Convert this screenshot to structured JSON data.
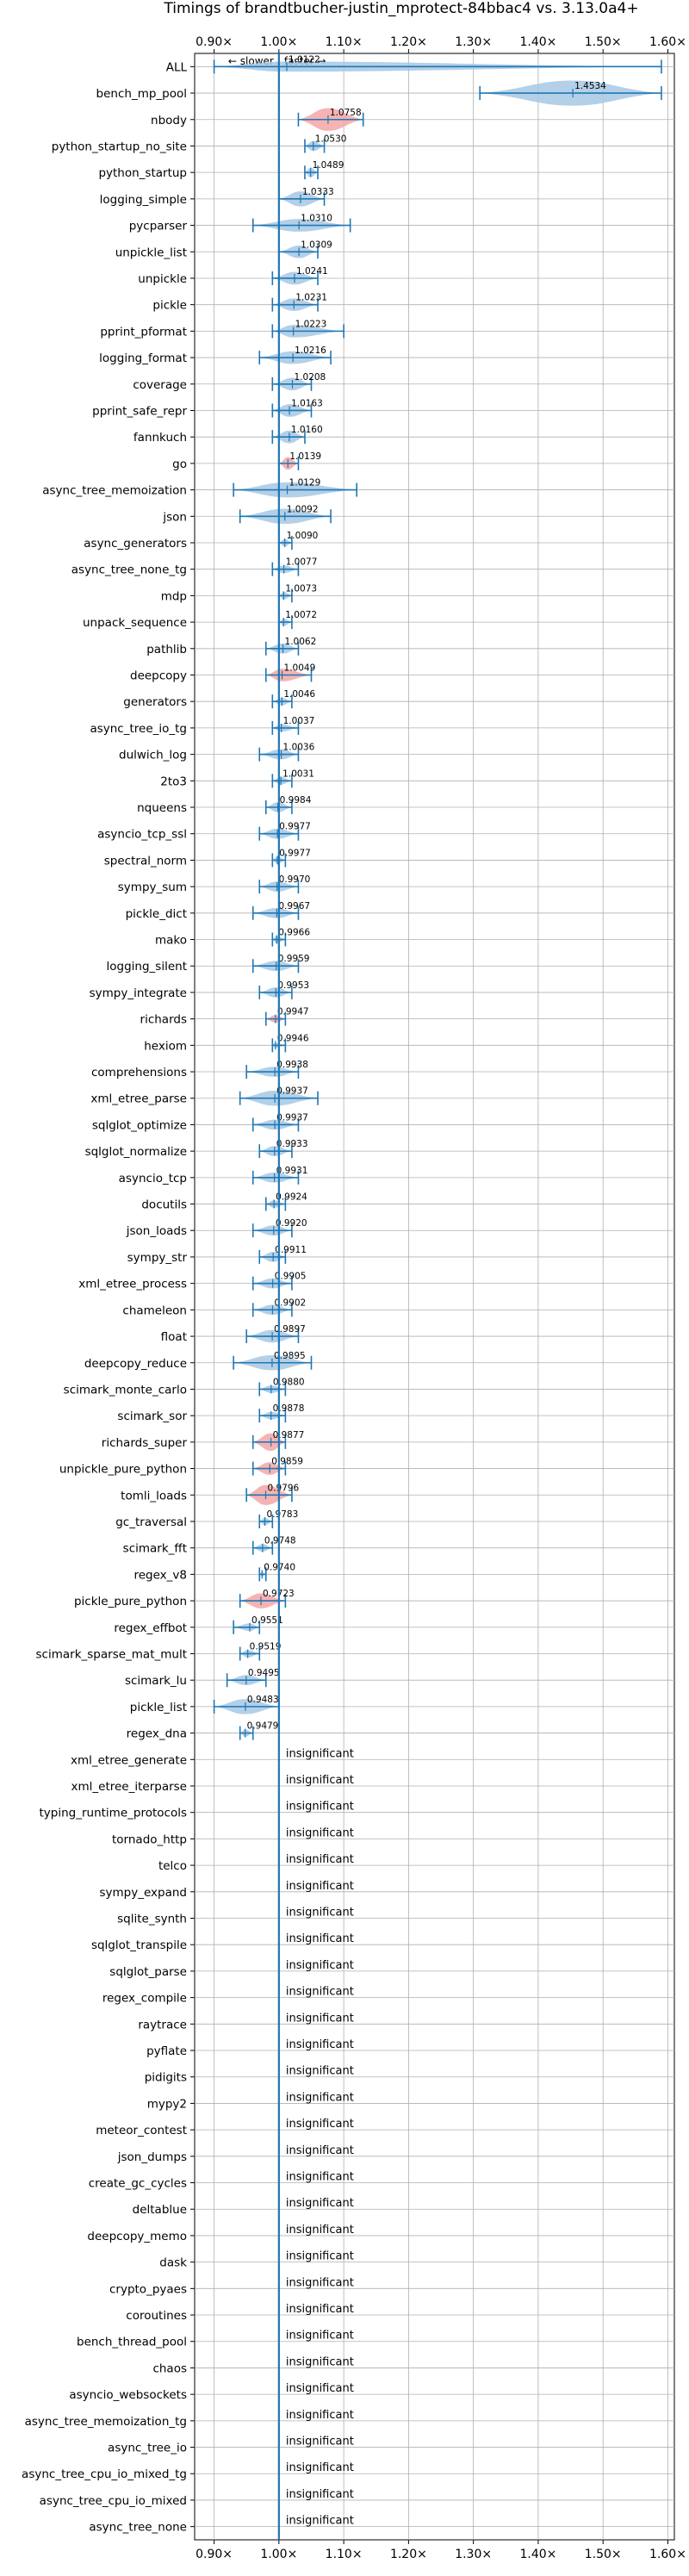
{
  "chart_data": {
    "type": "violin",
    "title": "Timings of brandtbucher-justin_mprotect-84bbac4 vs. 3.13.0a4+",
    "direction_labels": {
      "slower": "slower",
      "faster": "faster"
    },
    "xlim": [
      0.87,
      1.61
    ],
    "xticks": [
      0.9,
      1.0,
      1.1,
      1.2,
      1.3,
      1.4,
      1.5,
      1.6
    ],
    "xtick_labels": [
      "0.90×",
      "1.00×",
      "1.10×",
      "1.20×",
      "1.30×",
      "1.40×",
      "1.50×",
      "1.60×"
    ],
    "reference_x": 1.0,
    "grid": true,
    "insignificant_text": "insignificant",
    "colors": {
      "normal": "#1f77b4",
      "normal_fill": "#a6c8e4",
      "highlight_fill": "#f4a6a6"
    },
    "rows": [
      {
        "name": "ALL",
        "value": 1.0122,
        "min": 0.9,
        "max": 1.59,
        "width": 0.4,
        "hl": false,
        "label": "1.0122"
      },
      {
        "name": "bench_mp_pool",
        "value": 1.4534,
        "min": 1.31,
        "max": 1.59,
        "width": 1.0,
        "hl": false,
        "label": "1.4534"
      },
      {
        "name": "nbody",
        "value": 1.0758,
        "min": 1.03,
        "max": 1.13,
        "width": 0.9,
        "hl": true,
        "label": "1.0758"
      },
      {
        "name": "python_startup_no_site",
        "value": 1.053,
        "min": 1.04,
        "max": 1.07,
        "width": 0.4,
        "hl": false,
        "label": "1.0530"
      },
      {
        "name": "python_startup",
        "value": 1.0489,
        "min": 1.04,
        "max": 1.06,
        "width": 0.4,
        "hl": false,
        "label": "1.0489"
      },
      {
        "name": "logging_simple",
        "value": 1.0333,
        "min": 1.0,
        "max": 1.07,
        "width": 0.6,
        "hl": false,
        "label": "1.0333"
      },
      {
        "name": "pycparser",
        "value": 1.031,
        "min": 0.96,
        "max": 1.11,
        "width": 0.5,
        "hl": false,
        "label": "1.0310"
      },
      {
        "name": "unpickle_list",
        "value": 1.0309,
        "min": 1.0,
        "max": 1.06,
        "width": 0.5,
        "hl": false,
        "label": "1.0309"
      },
      {
        "name": "unpickle",
        "value": 1.0241,
        "min": 0.99,
        "max": 1.06,
        "width": 0.5,
        "hl": false,
        "label": "1.0241"
      },
      {
        "name": "pickle",
        "value": 1.0231,
        "min": 0.99,
        "max": 1.06,
        "width": 0.5,
        "hl": false,
        "label": "1.0231"
      },
      {
        "name": "pprint_pformat",
        "value": 1.0223,
        "min": 0.99,
        "max": 1.1,
        "width": 0.5,
        "hl": false,
        "label": "1.0223"
      },
      {
        "name": "logging_format",
        "value": 1.0216,
        "min": 0.97,
        "max": 1.08,
        "width": 0.5,
        "hl": false,
        "label": "1.0216"
      },
      {
        "name": "coverage",
        "value": 1.0208,
        "min": 0.99,
        "max": 1.05,
        "width": 0.5,
        "hl": false,
        "label": "1.0208"
      },
      {
        "name": "pprint_safe_repr",
        "value": 1.0163,
        "min": 0.99,
        "max": 1.05,
        "width": 0.5,
        "hl": false,
        "label": "1.0163"
      },
      {
        "name": "fannkuch",
        "value": 1.016,
        "min": 0.99,
        "max": 1.04,
        "width": 0.5,
        "hl": false,
        "label": "1.0160"
      },
      {
        "name": "go",
        "value": 1.0139,
        "min": 1.0,
        "max": 1.03,
        "width": 0.5,
        "hl": true,
        "label": "1.0139"
      },
      {
        "name": "async_tree_memoization",
        "value": 1.0129,
        "min": 0.93,
        "max": 1.12,
        "width": 0.6,
        "hl": false,
        "label": "1.0129"
      },
      {
        "name": "json",
        "value": 1.0092,
        "min": 0.94,
        "max": 1.08,
        "width": 0.6,
        "hl": false,
        "label": "1.0092"
      },
      {
        "name": "async_generators",
        "value": 1.009,
        "min": 1.0,
        "max": 1.02,
        "width": 0.3,
        "hl": false,
        "label": "1.0090"
      },
      {
        "name": "async_tree_none_tg",
        "value": 1.0077,
        "min": 0.99,
        "max": 1.03,
        "width": 0.3,
        "hl": false,
        "label": "1.0077"
      },
      {
        "name": "mdp",
        "value": 1.0073,
        "min": 1.0,
        "max": 1.02,
        "width": 0.3,
        "hl": false,
        "label": "1.0073"
      },
      {
        "name": "unpack_sequence",
        "value": 1.0072,
        "min": 1.0,
        "max": 1.02,
        "width": 0.3,
        "hl": false,
        "label": "1.0072"
      },
      {
        "name": "pathlib",
        "value": 1.0062,
        "min": 0.98,
        "max": 1.03,
        "width": 0.4,
        "hl": false,
        "label": "1.0062"
      },
      {
        "name": "deepcopy",
        "value": 1.0049,
        "min": 0.98,
        "max": 1.05,
        "width": 0.5,
        "hl": true,
        "label": "1.0049"
      },
      {
        "name": "generators",
        "value": 1.0046,
        "min": 0.99,
        "max": 1.02,
        "width": 0.3,
        "hl": false,
        "label": "1.0046"
      },
      {
        "name": "async_tree_io_tg",
        "value": 1.0037,
        "min": 0.99,
        "max": 1.03,
        "width": 0.3,
        "hl": false,
        "label": "1.0037"
      },
      {
        "name": "dulwich_log",
        "value": 1.0036,
        "min": 0.97,
        "max": 1.03,
        "width": 0.4,
        "hl": false,
        "label": "1.0036"
      },
      {
        "name": "2to3",
        "value": 1.0031,
        "min": 0.99,
        "max": 1.02,
        "width": 0.3,
        "hl": false,
        "label": "1.0031"
      },
      {
        "name": "nqueens",
        "value": 0.9984,
        "min": 0.98,
        "max": 1.02,
        "width": 0.4,
        "hl": false,
        "label": "0.9984"
      },
      {
        "name": "asyncio_tcp_ssl",
        "value": 0.9977,
        "min": 0.97,
        "max": 1.03,
        "width": 0.4,
        "hl": false,
        "label": "0.9977"
      },
      {
        "name": "spectral_norm",
        "value": 0.9977,
        "min": 0.99,
        "max": 1.01,
        "width": 0.3,
        "hl": false,
        "label": "0.9977"
      },
      {
        "name": "sympy_sum",
        "value": 0.997,
        "min": 0.97,
        "max": 1.03,
        "width": 0.4,
        "hl": false,
        "label": "0.9970"
      },
      {
        "name": "pickle_dict",
        "value": 0.9967,
        "min": 0.96,
        "max": 1.03,
        "width": 0.4,
        "hl": false,
        "label": "0.9967"
      },
      {
        "name": "mako",
        "value": 0.9966,
        "min": 0.99,
        "max": 1.01,
        "width": 0.3,
        "hl": false,
        "label": "0.9966"
      },
      {
        "name": "logging_silent",
        "value": 0.9959,
        "min": 0.96,
        "max": 1.03,
        "width": 0.4,
        "hl": false,
        "label": "0.9959"
      },
      {
        "name": "sympy_integrate",
        "value": 0.9953,
        "min": 0.97,
        "max": 1.02,
        "width": 0.4,
        "hl": false,
        "label": "0.9953"
      },
      {
        "name": "richards",
        "value": 0.9947,
        "min": 0.98,
        "max": 1.01,
        "width": 0.3,
        "hl": true,
        "label": "0.9947"
      },
      {
        "name": "hexiom",
        "value": 0.9946,
        "min": 0.99,
        "max": 1.01,
        "width": 0.2,
        "hl": false,
        "label": "0.9946"
      },
      {
        "name": "comprehensions",
        "value": 0.9938,
        "min": 0.95,
        "max": 1.03,
        "width": 0.4,
        "hl": false,
        "label": "0.9938"
      },
      {
        "name": "xml_etree_parse",
        "value": 0.9937,
        "min": 0.94,
        "max": 1.06,
        "width": 0.6,
        "hl": false,
        "label": "0.9937"
      },
      {
        "name": "sqlglot_optimize",
        "value": 0.9937,
        "min": 0.96,
        "max": 1.03,
        "width": 0.4,
        "hl": false,
        "label": "0.9937"
      },
      {
        "name": "sqlglot_normalize",
        "value": 0.9933,
        "min": 0.97,
        "max": 1.02,
        "width": 0.4,
        "hl": false,
        "label": "0.9933"
      },
      {
        "name": "asyncio_tcp",
        "value": 0.9931,
        "min": 0.96,
        "max": 1.03,
        "width": 0.4,
        "hl": false,
        "label": "0.9931"
      },
      {
        "name": "docutils",
        "value": 0.9924,
        "min": 0.98,
        "max": 1.01,
        "width": 0.3,
        "hl": false,
        "label": "0.9924"
      },
      {
        "name": "json_loads",
        "value": 0.992,
        "min": 0.96,
        "max": 1.02,
        "width": 0.4,
        "hl": false,
        "label": "0.9920"
      },
      {
        "name": "sympy_str",
        "value": 0.9911,
        "min": 0.97,
        "max": 1.01,
        "width": 0.4,
        "hl": false,
        "label": "0.9911"
      },
      {
        "name": "xml_etree_process",
        "value": 0.9905,
        "min": 0.96,
        "max": 1.02,
        "width": 0.4,
        "hl": false,
        "label": "0.9905"
      },
      {
        "name": "chameleon",
        "value": 0.9902,
        "min": 0.96,
        "max": 1.02,
        "width": 0.4,
        "hl": false,
        "label": "0.9902"
      },
      {
        "name": "float",
        "value": 0.9897,
        "min": 0.95,
        "max": 1.03,
        "width": 0.5,
        "hl": false,
        "label": "0.9897"
      },
      {
        "name": "deepcopy_reduce",
        "value": 0.9895,
        "min": 0.93,
        "max": 1.05,
        "width": 0.6,
        "hl": false,
        "label": "0.9895"
      },
      {
        "name": "scimark_monte_carlo",
        "value": 0.988,
        "min": 0.97,
        "max": 1.01,
        "width": 0.3,
        "hl": false,
        "label": "0.9880"
      },
      {
        "name": "scimark_sor",
        "value": 0.9878,
        "min": 0.97,
        "max": 1.01,
        "width": 0.3,
        "hl": false,
        "label": "0.9878"
      },
      {
        "name": "richards_super",
        "value": 0.9877,
        "min": 0.96,
        "max": 1.01,
        "width": 0.7,
        "hl": true,
        "label": "0.9877"
      },
      {
        "name": "unpickle_pure_python",
        "value": 0.9859,
        "min": 0.96,
        "max": 1.01,
        "width": 0.5,
        "hl": true,
        "label": "0.9859"
      },
      {
        "name": "tomli_loads",
        "value": 0.9796,
        "min": 0.95,
        "max": 1.02,
        "width": 0.8,
        "hl": true,
        "label": "0.9796"
      },
      {
        "name": "gc_traversal",
        "value": 0.9783,
        "min": 0.97,
        "max": 0.99,
        "width": 0.3,
        "hl": false,
        "label": "0.9783"
      },
      {
        "name": "scimark_fft",
        "value": 0.9748,
        "min": 0.96,
        "max": 0.99,
        "width": 0.3,
        "hl": false,
        "label": "0.9748"
      },
      {
        "name": "regex_v8",
        "value": 0.974,
        "min": 0.97,
        "max": 0.98,
        "width": 0.2,
        "hl": false,
        "label": "0.9740"
      },
      {
        "name": "pickle_pure_python",
        "value": 0.9723,
        "min": 0.94,
        "max": 1.01,
        "width": 0.6,
        "hl": true,
        "label": "0.9723"
      },
      {
        "name": "regex_effbot",
        "value": 0.9551,
        "min": 0.93,
        "max": 0.97,
        "width": 0.3,
        "hl": false,
        "label": "0.9551"
      },
      {
        "name": "scimark_sparse_mat_mult",
        "value": 0.9519,
        "min": 0.94,
        "max": 0.97,
        "width": 0.3,
        "hl": false,
        "label": "0.9519"
      },
      {
        "name": "scimark_lu",
        "value": 0.9495,
        "min": 0.92,
        "max": 0.98,
        "width": 0.4,
        "hl": false,
        "label": "0.9495"
      },
      {
        "name": "pickle_list",
        "value": 0.9483,
        "min": 0.9,
        "max": 1.0,
        "width": 0.6,
        "hl": false,
        "label": "0.9483"
      },
      {
        "name": "regex_dna",
        "value": 0.9479,
        "min": 0.94,
        "max": 0.96,
        "width": 0.3,
        "hl": false,
        "label": "0.9479"
      }
    ],
    "insignificant_rows": [
      "xml_etree_generate",
      "xml_etree_iterparse",
      "typing_runtime_protocols",
      "tornado_http",
      "telco",
      "sympy_expand",
      "sqlite_synth",
      "sqlglot_transpile",
      "sqlglot_parse",
      "regex_compile",
      "raytrace",
      "pyflate",
      "pidigits",
      "mypy2",
      "meteor_contest",
      "json_dumps",
      "create_gc_cycles",
      "deltablue",
      "deepcopy_memo",
      "dask",
      "crypto_pyaes",
      "coroutines",
      "bench_thread_pool",
      "chaos",
      "asyncio_websockets",
      "async_tree_memoization_tg",
      "async_tree_io",
      "async_tree_cpu_io_mixed_tg",
      "async_tree_cpu_io_mixed",
      "async_tree_none"
    ]
  }
}
